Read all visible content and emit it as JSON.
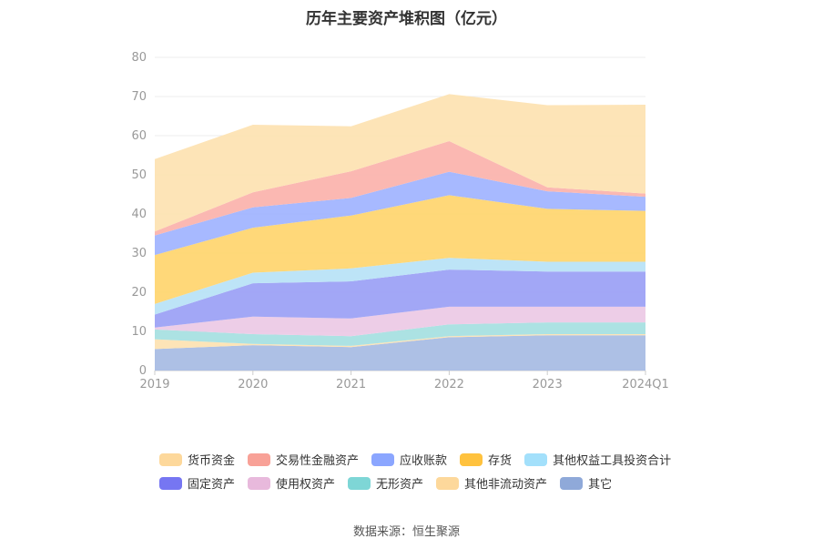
{
  "chart_data": {
    "type": "area",
    "title": "历年主要资产堆积图（亿元）",
    "categories": [
      "2019",
      "2020",
      "2021",
      "2022",
      "2023",
      "2024Q1"
    ],
    "ylim": [
      0,
      80
    ],
    "yticks": [
      0,
      10,
      20,
      30,
      40,
      50,
      60,
      70,
      80
    ],
    "grid": true,
    "legend_position": "bottom",
    "stack_order": [
      "其它",
      "其他非流动资产",
      "无形资产",
      "使用权资产",
      "固定资产",
      "其他权益工具投资合计",
      "存货",
      "应收账款",
      "交易性金融资产",
      "货币资金"
    ],
    "series": [
      {
        "name": "货币资金",
        "color": "#fde3b3",
        "values": [
          18.5,
          17.3,
          11.5,
          12.0,
          21.0,
          22.7
        ]
      },
      {
        "name": "交易性金融资产",
        "color": "#fbb4ae",
        "values": [
          1.0,
          3.8,
          6.8,
          7.8,
          1.0,
          0.8
        ]
      },
      {
        "name": "应收账款",
        "color": "#a2b5ff",
        "values": [
          5.0,
          5.2,
          4.5,
          6.0,
          4.5,
          3.6
        ]
      },
      {
        "name": "存货",
        "color": "#ffd672",
        "values": [
          12.5,
          11.5,
          13.5,
          16.0,
          13.5,
          13.0
        ]
      },
      {
        "name": "其他权益工具投资合计",
        "color": "#b9e3f7",
        "values": [
          2.7,
          2.7,
          3.3,
          3.0,
          2.5,
          2.5
        ]
      },
      {
        "name": "固定资产",
        "color": "#9da2f5",
        "values": [
          3.3,
          8.5,
          9.5,
          9.5,
          9.0,
          9.0
        ]
      },
      {
        "name": "使用权资产",
        "color": "#eccae6",
        "values": [
          0.5,
          4.5,
          4.5,
          4.5,
          4.0,
          4.0
        ]
      },
      {
        "name": "无形资产",
        "color": "#a8e0e1",
        "values": [
          2.5,
          2.5,
          2.5,
          3.0,
          3.0,
          3.0
        ]
      },
      {
        "name": "其他非流动资产",
        "color": "#fde3b3",
        "values": [
          2.5,
          0.3,
          0.3,
          0.3,
          0.3,
          0.3
        ]
      },
      {
        "name": "其它",
        "color": "#a9bde4",
        "values": [
          5.5,
          6.5,
          6.0,
          8.5,
          9.0,
          9.0
        ]
      }
    ]
  },
  "legend": {
    "items": [
      {
        "label": "货币资金",
        "color": "#fdd89b"
      },
      {
        "label": "交易性金融资产",
        "color": "#f8a197"
      },
      {
        "label": "应收账款",
        "color": "#8ba6ff"
      },
      {
        "label": "存货",
        "color": "#ffc23e"
      },
      {
        "label": "其他权益工具投资合计",
        "color": "#a3e0fb"
      },
      {
        "label": "固定资产",
        "color": "#7676f2"
      },
      {
        "label": "使用权资产",
        "color": "#e8b9dc"
      },
      {
        "label": "无形资产",
        "color": "#7ed6d6"
      },
      {
        "label": "其他非流动资产",
        "color": "#fdd89b"
      },
      {
        "label": "其它",
        "color": "#8fa9d9"
      }
    ]
  },
  "source_text": "数据来源：恒生聚源"
}
